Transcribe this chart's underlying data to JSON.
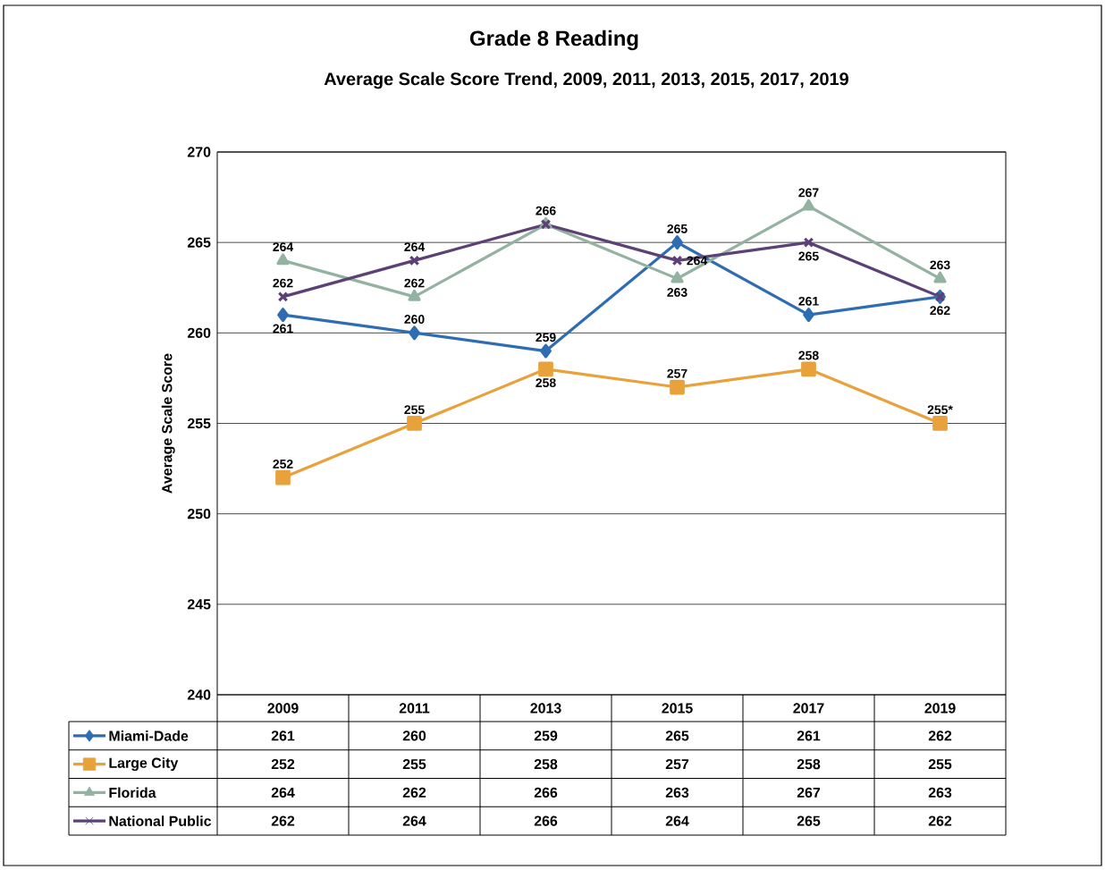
{
  "chart_data": {
    "type": "line",
    "title": "Grade 8 Reading",
    "subtitle": "Average Scale Score Trend, 2009, 2011, 2013, 2015, 2017, 2019",
    "ylabel": "Average Scale Score",
    "categories": [
      "2009",
      "2011",
      "2013",
      "2015",
      "2017",
      "2019"
    ],
    "ylim": [
      240,
      270
    ],
    "yticks": [
      240,
      245,
      250,
      255,
      260,
      265,
      270
    ],
    "grid": "y",
    "legend": "bottom",
    "data_labels": true,
    "line_style": "solid",
    "series": [
      {
        "name": "Miami-Dade",
        "color": "#2f6db3",
        "marker": "diamond",
        "values": [
          261,
          260,
          259,
          265,
          261,
          262
        ]
      },
      {
        "name": "Large City",
        "color": "#e9a23b",
        "marker": "square",
        "values": [
          252,
          255,
          258,
          257,
          258,
          255
        ]
      },
      {
        "name": "Florida",
        "color": "#93b2a2",
        "marker": "triangle",
        "values": [
          264,
          262,
          266,
          263,
          267,
          263
        ]
      },
      {
        "name": "National Public",
        "color": "#5b4176",
        "marker": "cross",
        "values": [
          262,
          264,
          266,
          264,
          265,
          262
        ]
      }
    ],
    "annotations": [
      {
        "text": "261",
        "x": "2009",
        "y": 261
      },
      {
        "text": "260",
        "x": "2011",
        "y": 260
      },
      {
        "text": "259",
        "x": "2013",
        "y": 259
      },
      {
        "text": "265",
        "x": "2015",
        "y": 265
      },
      {
        "text": "261",
        "x": "2017",
        "y": 261
      },
      {
        "text": "252",
        "x": "2009",
        "y": 252
      },
      {
        "text": "255",
        "x": "2011",
        "y": 255
      },
      {
        "text": "258",
        "x": "2013",
        "y": 258
      },
      {
        "text": "257",
        "x": "2015",
        "y": 257
      },
      {
        "text": "258",
        "x": "2017",
        "y": 258
      },
      {
        "text": "255*",
        "x": "2019",
        "y": 255
      },
      {
        "text": "264",
        "x": "2009",
        "y": 264
      },
      {
        "text": "262",
        "x": "2011",
        "y": 262
      },
      {
        "text": "263",
        "x": "2015",
        "y": 263
      },
      {
        "text": "267",
        "x": "2017",
        "y": 267
      },
      {
        "text": "263",
        "x": "2019",
        "y": 263
      },
      {
        "text": "262",
        "x": "2009",
        "y": 262
      },
      {
        "text": "264",
        "x": "2011",
        "y": 264
      },
      {
        "text": "266",
        "x": "2013",
        "y": 266
      },
      {
        "text": "264",
        "x": "2015",
        "y": 264
      },
      {
        "text": "265",
        "x": "2017",
        "y": 265
      },
      {
        "text": "262",
        "x": "2019",
        "y": 262
      }
    ]
  }
}
